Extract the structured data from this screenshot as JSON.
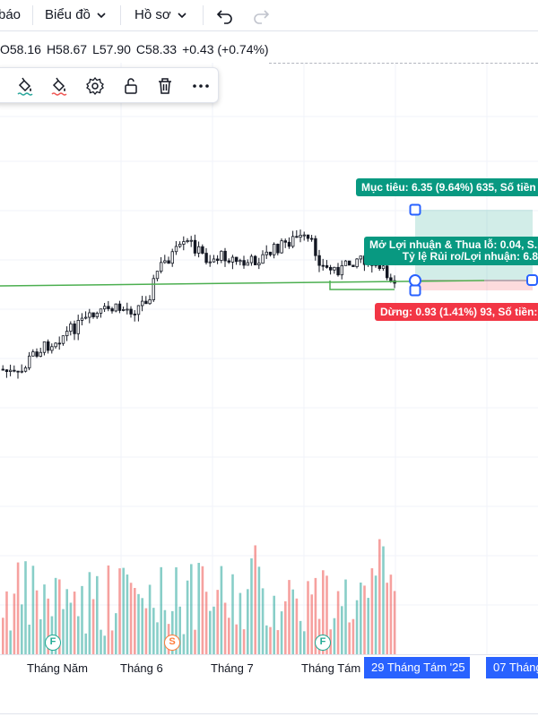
{
  "topbar": {
    "alert_partial": "báo",
    "chart_menu": "Biểu đồ",
    "profile_menu": "Hồ sơ"
  },
  "ohlc": {
    "open": "O58.16",
    "high": "H58.67",
    "low": "L57.90",
    "close": "C58.33",
    "change": "+0.43 (+0.74%)"
  },
  "drawing_toolbar": {
    "icons": [
      "paint-bucket-green-icon",
      "paint-bucket-red-icon",
      "settings-icon",
      "unlock-icon",
      "trash-icon",
      "more-icon"
    ]
  },
  "position": {
    "target_label": "Mục tiêu: 6.35 (9.64%) 635, Số tiền",
    "pl_label": "Mở Lợi nhuận & Thua lỗ: 0.04, S...",
    "ratio_label": "Tỷ lệ Rủi ro/Lợi nhuận: 6.8",
    "stop_label": "Dừng: 0.93 (1.41%) 93, Số tiền:"
  },
  "events": [
    {
      "letter": "F",
      "kind": "financial",
      "color": "#22ab94"
    },
    {
      "letter": "S",
      "kind": "split",
      "color": "#ff7b39"
    },
    {
      "letter": "F",
      "kind": "financial",
      "color": "#22ab94"
    }
  ],
  "time_axis": {
    "labels": [
      "Tháng Năm",
      "Tháng 6",
      "Tháng 7",
      "Tháng Tám"
    ],
    "crosshair_date": "29 Tháng Tám '25",
    "next_date": "07 Tháng"
  },
  "colors": {
    "up": "#26a69a",
    "down": "#ef5350",
    "candle": "#131722",
    "target_zone": "#089981",
    "stop_zone": "#f23645",
    "handle": "#2962ff"
  }
}
